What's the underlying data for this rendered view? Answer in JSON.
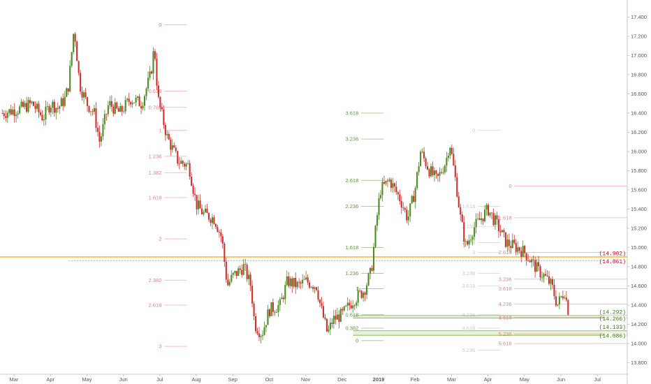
{
  "chart_data": {
    "type": "candlestick",
    "y_axis": {
      "ticks": [
        13.8,
        14.0,
        14.2,
        14.4,
        14.6,
        14.8,
        15.0,
        15.2,
        15.4,
        15.6,
        15.8,
        16.0,
        16.2,
        16.4,
        16.6,
        16.8,
        17.0,
        17.2,
        17.4
      ],
      "tick_labels": [
        "13.800",
        "14.000",
        "14.200",
        "14.400",
        "14.600",
        "14.800",
        "15.000",
        "15.200",
        "15.400",
        "15.600",
        "15.800",
        "16.000",
        "16.200",
        "16.400",
        "16.600",
        "16.800",
        "17.000",
        "17.200",
        "17.400"
      ],
      "range": [
        13.68,
        17.52
      ],
      "side": "right"
    },
    "x_axis": {
      "labels": [
        "Mar",
        "Apr",
        "May",
        "Jun",
        "Jul",
        "Aug",
        "Sep",
        "Oct",
        "Nov",
        "Dec",
        "2019",
        "Feb",
        "Mar",
        "Apr",
        "May",
        "Jun",
        "Jul"
      ],
      "months": [
        0,
        1,
        2,
        3,
        4,
        5,
        6,
        7,
        8,
        9,
        10,
        11,
        12,
        13,
        14,
        15,
        16
      ],
      "range": [
        -0.32,
        16.2
      ]
    },
    "ohlc_path": [
      [
        -0.32,
        16.4
      ],
      [
        0.2,
        16.45
      ],
      [
        0.5,
        16.5
      ],
      [
        0.8,
        16.35
      ],
      [
        1.0,
        16.5
      ],
      [
        1.2,
        16.45
      ],
      [
        1.4,
        16.55
      ],
      [
        1.5,
        16.7
      ],
      [
        1.65,
        17.3
      ],
      [
        1.8,
        16.7
      ],
      [
        2.0,
        16.5
      ],
      [
        2.2,
        16.4
      ],
      [
        2.35,
        16.1
      ],
      [
        2.6,
        16.5
      ],
      [
        2.9,
        16.4
      ],
      [
        3.2,
        16.55
      ],
      [
        3.5,
        16.5
      ],
      [
        3.75,
        16.8
      ],
      [
        3.85,
        17.1
      ],
      [
        3.95,
        16.55
      ],
      [
        4.2,
        16.15
      ],
      [
        4.5,
        15.9
      ],
      [
        4.8,
        15.85
      ],
      [
        5.0,
        15.45
      ],
      [
        5.2,
        15.35
      ],
      [
        5.5,
        15.3
      ],
      [
        5.7,
        15.1
      ],
      [
        5.85,
        14.6
      ],
      [
        6.0,
        14.7
      ],
      [
        6.3,
        14.8
      ],
      [
        6.5,
        14.6
      ],
      [
        6.6,
        14.2
      ],
      [
        6.8,
        14.1
      ],
      [
        7.0,
        14.35
      ],
      [
        7.3,
        14.4
      ],
      [
        7.5,
        14.65
      ],
      [
        7.8,
        14.6
      ],
      [
        8.0,
        14.65
      ],
      [
        8.3,
        14.6
      ],
      [
        8.4,
        14.4
      ],
      [
        8.6,
        14.1
      ],
      [
        8.75,
        14.25
      ],
      [
        9.0,
        14.3
      ],
      [
        9.3,
        14.45
      ],
      [
        9.6,
        14.55
      ],
      [
        9.8,
        14.75
      ],
      [
        9.95,
        15.3
      ],
      [
        10.05,
        15.6
      ],
      [
        10.3,
        15.7
      ],
      [
        10.6,
        15.5
      ],
      [
        10.8,
        15.3
      ],
      [
        11.0,
        15.6
      ],
      [
        11.15,
        16.0
      ],
      [
        11.4,
        15.8
      ],
      [
        11.6,
        15.7
      ],
      [
        11.85,
        15.9
      ],
      [
        11.95,
        16.1
      ],
      [
        12.15,
        15.6
      ],
      [
        12.25,
        15.3
      ],
      [
        12.4,
        15.0
      ],
      [
        12.6,
        15.2
      ],
      [
        12.8,
        15.3
      ],
      [
        13.0,
        15.4
      ],
      [
        13.3,
        15.2
      ],
      [
        13.5,
        15.05
      ],
      [
        13.8,
        15.0
      ],
      [
        14.0,
        14.95
      ],
      [
        14.2,
        14.85
      ],
      [
        14.4,
        14.75
      ],
      [
        14.55,
        14.7
      ],
      [
        14.75,
        14.6
      ],
      [
        14.9,
        14.4
      ],
      [
        15.1,
        14.55
      ],
      [
        15.2,
        14.35
      ]
    ],
    "horizontal_lines": [
      {
        "value": 14.902,
        "color": "#f5a623",
        "style": "solid",
        "label": "(14.902)",
        "label_color": "#d0021b"
      },
      {
        "value": 14.861,
        "color": "#e57373",
        "style": "dotted",
        "label": "(14.861)",
        "label_color": "#d0021b"
      },
      {
        "value": 14.292,
        "color": "#7cb342",
        "style": "solid",
        "label": "(14.292)",
        "label_color": "#3a7d1e"
      },
      {
        "value": 14.266,
        "color": "#7cb342",
        "style": "solid",
        "label": "(14.266)",
        "label_color": "#3a7d1e"
      },
      {
        "value": 14.133,
        "color": "#7cb342",
        "style": "solid",
        "label": "(14.133)",
        "label_color": "#3a7d1e"
      },
      {
        "value": 14.086,
        "color": "#7cb342",
        "style": "solid",
        "label": "(14.086)",
        "label_color": "#3a7d1e"
      }
    ],
    "fib_sets": [
      {
        "name": "",
        "color": "#e57373",
        "anchor_month": 4.05,
        "levels": [
          {
            "ratio": "0",
            "price": 17.32
          },
          {
            "ratio": "0.618",
            "price": 16.63
          },
          {
            "ratio": "0.786",
            "price": 16.46
          },
          {
            "ratio": "1",
            "price": 16.22
          },
          {
            "ratio": "1.236",
            "price": 15.95
          },
          {
            "ratio": "1.382",
            "price": 15.78
          },
          {
            "ratio": "1.618",
            "price": 15.52
          },
          {
            "ratio": "2",
            "price": 15.09
          },
          {
            "ratio": "2.382",
            "price": 14.66
          },
          {
            "ratio": "2.618",
            "price": 14.4
          },
          {
            "ratio": "3",
            "price": 13.97
          }
        ]
      },
      {
        "name": "",
        "color": "#4c8c22",
        "anchor_month": 9.45,
        "levels": [
          {
            "ratio": "0",
            "price": 14.03
          },
          {
            "ratio": "0.382",
            "price": 14.16
          },
          {
            "ratio": "0.618",
            "price": 14.3
          },
          {
            "ratio": "1",
            "price": 14.57
          },
          {
            "ratio": "1.236",
            "price": 14.73
          },
          {
            "ratio": "1.618",
            "price": 15.0
          },
          {
            "ratio": "2.236",
            "price": 15.43
          },
          {
            "ratio": "2.618",
            "price": 15.7
          },
          {
            "ratio": "3.236",
            "price": 16.13
          },
          {
            "ratio": "3.618",
            "price": 16.4
          }
        ]
      },
      {
        "name": "",
        "color": "#9e9e9e",
        "anchor_month": 12.65,
        "levels": [
          {
            "ratio": "0",
            "price": 16.22
          },
          {
            "ratio": "1.618",
            "price": 15.43
          },
          {
            "ratio": "2.236",
            "price": 15.22
          },
          {
            "ratio": "2.618",
            "price": 15.05
          },
          {
            "ratio": "3",
            "price": 14.95
          },
          {
            "ratio": "3.236",
            "price": 14.73
          },
          {
            "ratio": "3.618",
            "price": 14.6
          },
          {
            "ratio": "4.236",
            "price": 14.3
          },
          {
            "ratio": "4.618",
            "price": 14.16
          },
          {
            "ratio": "5.236",
            "price": 13.93
          }
        ]
      },
      {
        "name": "",
        "color": "#e57373",
        "anchor_month": 13.65,
        "levels": [
          {
            "ratio": "0",
            "price": 15.64
          },
          {
            "ratio": "1.618",
            "price": 15.31
          },
          {
            "ratio": "2.618",
            "price": 14.95
          },
          {
            "ratio": "3.236",
            "price": 14.67
          },
          {
            "ratio": "3.618",
            "price": 14.57
          },
          {
            "ratio": "4.236",
            "price": 14.41
          },
          {
            "ratio": "4.618",
            "price": 14.27
          },
          {
            "ratio": "5.236",
            "price": 14.1
          },
          {
            "ratio": "5.618",
            "price": 14.0
          }
        ]
      }
    ],
    "grid": false,
    "legend": "none"
  },
  "colors": {
    "up_candle": "#4c8c22",
    "down_candle": "#d0302e",
    "axis_line": "#c8c8c8",
    "axis_text": "#555555",
    "support_zone": "#e8f1dc"
  }
}
